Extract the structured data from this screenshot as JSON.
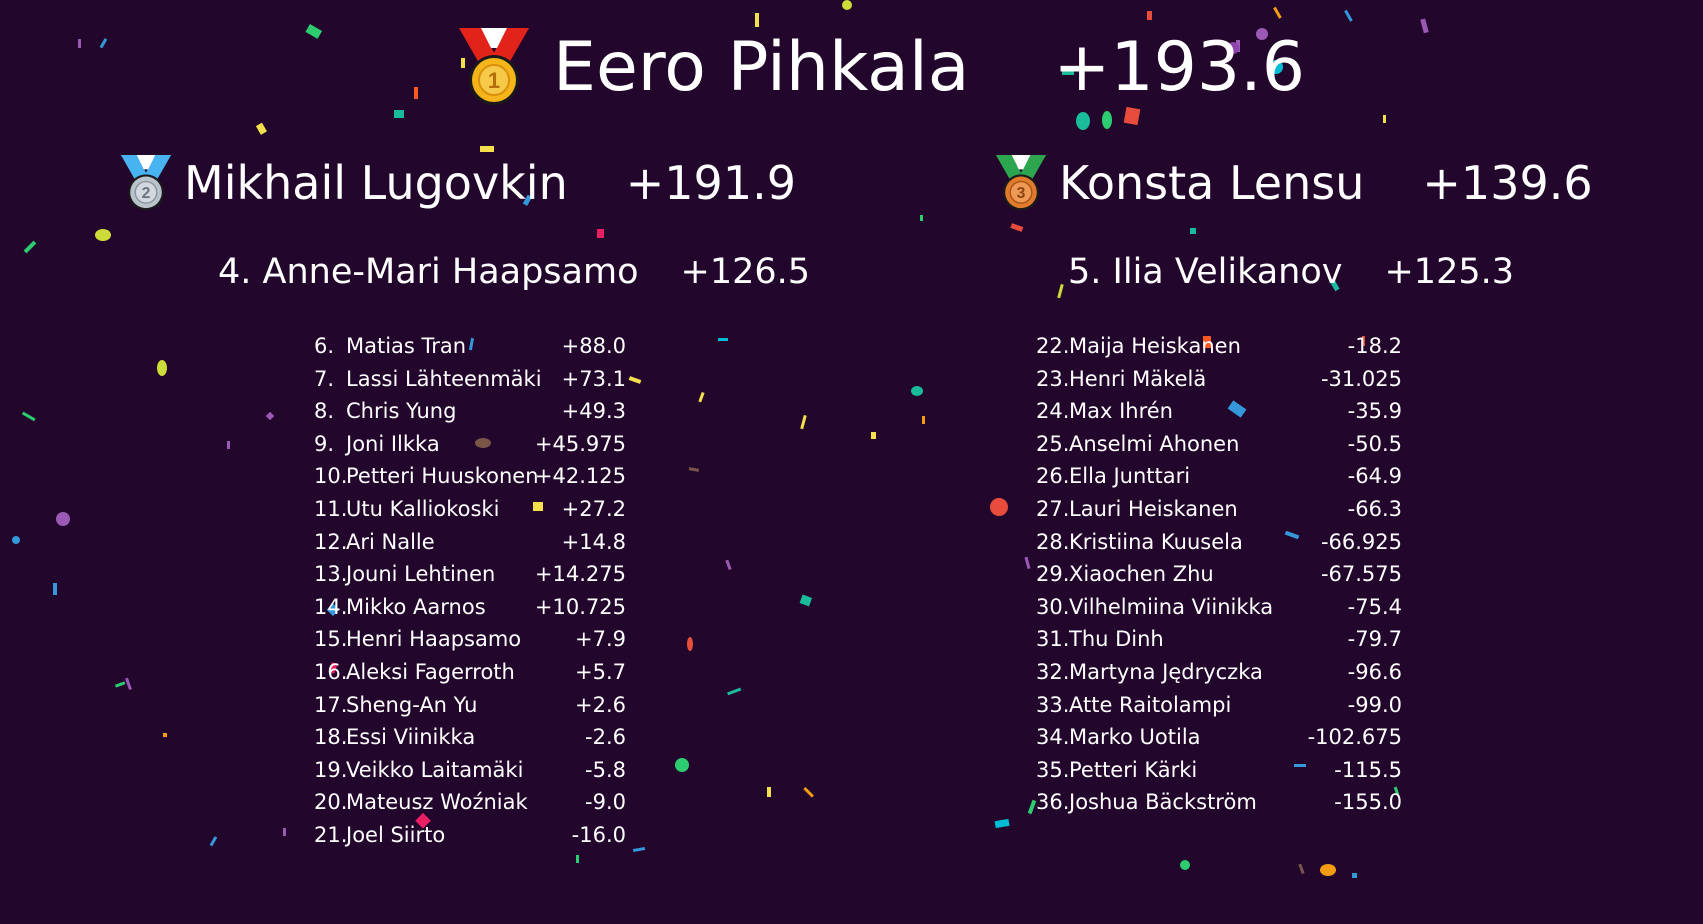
{
  "podium": {
    "first": {
      "name": "Eero Pihkala",
      "score": "+193.6",
      "medal": "gold-medal-icon"
    },
    "second": {
      "name": "Mikhail Lugovkin",
      "score": "+191.9",
      "medal": "silver-medal-icon"
    },
    "third": {
      "name": "Konsta Lensu",
      "score": "+139.6",
      "medal": "bronze-medal-icon"
    },
    "fourth": {
      "label": "4. Anne-Mari Haapsamo",
      "score": "+126.5"
    },
    "fifth": {
      "label": "5. Ilia Velikanov",
      "score": "+125.3"
    }
  },
  "left_list": [
    {
      "rank": "6.",
      "name": "Matias Tran",
      "score": "+88.0"
    },
    {
      "rank": "7.",
      "name": "Lassi Lähteenmäki",
      "score": "+73.1"
    },
    {
      "rank": "8.",
      "name": "Chris Yung",
      "score": "+49.3"
    },
    {
      "rank": "9.",
      "name": "Joni Ilkka",
      "score": "+45.975"
    },
    {
      "rank": "10.",
      "name": "Petteri Huuskonen",
      "score": "+42.125"
    },
    {
      "rank": "11.",
      "name": "Utu Kalliokoski",
      "score": "+27.2"
    },
    {
      "rank": "12.",
      "name": "Ari Nalle",
      "score": "+14.8"
    },
    {
      "rank": "13.",
      "name": "Jouni Lehtinen",
      "score": "+14.275"
    },
    {
      "rank": "14.",
      "name": "Mikko Aarnos",
      "score": "+10.725"
    },
    {
      "rank": "15.",
      "name": "Henri Haapsamo",
      "score": "+7.9"
    },
    {
      "rank": "16.",
      "name": "Aleksi Fagerroth",
      "score": "+5.7"
    },
    {
      "rank": "17.",
      "name": "Sheng-An Yu",
      "score": "+2.6"
    },
    {
      "rank": "18.",
      "name": "Essi Viinikka",
      "score": "-2.6"
    },
    {
      "rank": "19.",
      "name": "Veikko Laitamäki",
      "score": "-5.8"
    },
    {
      "rank": "20.",
      "name": "Mateusz Woźniak",
      "score": "-9.0"
    },
    {
      "rank": "21.",
      "name": "Joel Siirto",
      "score": "-16.0"
    }
  ],
  "right_list": [
    {
      "rank": "22.",
      "name": "Maija Heiskanen",
      "score": "-18.2"
    },
    {
      "rank": "23.",
      "name": "Henri Mäkelä",
      "score": "-31.025"
    },
    {
      "rank": "24.",
      "name": "Max Ihrén",
      "score": "-35.9"
    },
    {
      "rank": "25.",
      "name": "Anselmi Ahonen",
      "score": "-50.5"
    },
    {
      "rank": "26.",
      "name": "Ella Junttari",
      "score": "-64.9"
    },
    {
      "rank": "27.",
      "name": "Lauri Heiskanen",
      "score": "-66.3"
    },
    {
      "rank": "28.",
      "name": "Kristiina Kuusela",
      "score": "-66.925"
    },
    {
      "rank": "29.",
      "name": "Xiaochen Zhu",
      "score": "-67.575"
    },
    {
      "rank": "30.",
      "name": "Vilhelmiina Viinikka",
      "score": "-75.4"
    },
    {
      "rank": "31.",
      "name": "Thu Dinh",
      "score": "-79.7"
    },
    {
      "rank": "32.",
      "name": "Martyna Jędryczka",
      "score": "-96.6"
    },
    {
      "rank": "33.",
      "name": "Atte Raitolampi",
      "score": "-99.0"
    },
    {
      "rank": "34.",
      "name": "Marko Uotila",
      "score": "-102.675"
    },
    {
      "rank": "35.",
      "name": "Petteri Kärki",
      "score": "-115.5"
    },
    {
      "rank": "36.",
      "name": "Joshua Bäckström",
      "score": "-155.0"
    }
  ],
  "colors": {
    "background": "#23062c",
    "text": "#ffffff",
    "gold": "#f5b41a",
    "silver": "#b9c3cc",
    "bronze": "#e07a2c",
    "ribbon_red": "#e2231a",
    "ribbon_blue": "#47b3f0",
    "ribbon_green": "#2da44e"
  },
  "confetti_colors": [
    "#f4e04d",
    "#2ecc71",
    "#3498db",
    "#e91e63",
    "#9b59b6",
    "#1abc9c",
    "#f39c12",
    "#e74c3c",
    "#00bcd4",
    "#cddc39",
    "#8e44ad",
    "#ff5722"
  ]
}
